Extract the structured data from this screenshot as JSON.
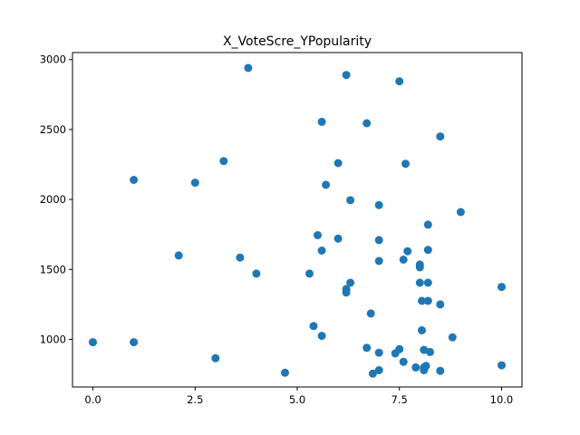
{
  "chart_data": {
    "type": "scatter",
    "title": "X_VoteScre_YPopularity",
    "xlabel": "",
    "ylabel": "",
    "xlim": [
      -0.5,
      10.5
    ],
    "ylim": [
      660,
      3050
    ],
    "xticks": [
      0.0,
      2.5,
      5.0,
      7.5,
      10.0
    ],
    "xtick_labels": [
      "0.0",
      "2.5",
      "5.0",
      "7.5",
      "10.0"
    ],
    "yticks": [
      1000,
      1500,
      2000,
      2500,
      3000
    ],
    "ytick_labels": [
      "1000",
      "1500",
      "2000",
      "2500",
      "3000"
    ],
    "grid": false,
    "legend": "none",
    "marker_color": "#1f77b4",
    "series": [
      {
        "x": [
          0,
          1,
          1,
          2.1,
          2.5,
          3,
          3.2,
          3.6,
          3.8,
          4,
          4.7,
          5.3,
          5.4,
          5.5,
          5.6,
          5.6,
          5.6,
          5.7,
          6,
          6,
          6.2,
          6.2,
          6.2,
          6.3,
          6.3,
          6.7,
          6.7,
          6.8,
          6.85,
          7,
          7,
          7,
          7,
          7,
          7.4,
          7.5,
          7.5,
          7.6,
          7.6,
          7.65,
          7.7,
          7.9,
          8,
          8,
          8,
          8.05,
          8.05,
          8.1,
          8.1,
          8.1,
          8.15,
          8.2,
          8.2,
          8.2,
          8.2,
          8.25,
          8.5,
          8.5,
          8.5,
          8.8,
          9,
          10,
          10
        ],
        "y": [
          980,
          2140,
          980,
          1600,
          2120,
          865,
          2275,
          1585,
          2940,
          1470,
          762,
          1470,
          1095,
          1745,
          2555,
          1635,
          1025,
          2105,
          2260,
          1720,
          1360,
          1335,
          2890,
          1995,
          1405,
          2545,
          940,
          1185,
          755,
          1960,
          1710,
          1560,
          905,
          780,
          900,
          930,
          2845,
          1570,
          840,
          2255,
          1630,
          800,
          1535,
          1515,
          1405,
          1065,
          1275,
          925,
          800,
          780,
          810,
          1820,
          1640,
          1405,
          1275,
          910,
          2450,
          1250,
          775,
          1015,
          1910,
          1375,
          815
        ]
      }
    ]
  }
}
